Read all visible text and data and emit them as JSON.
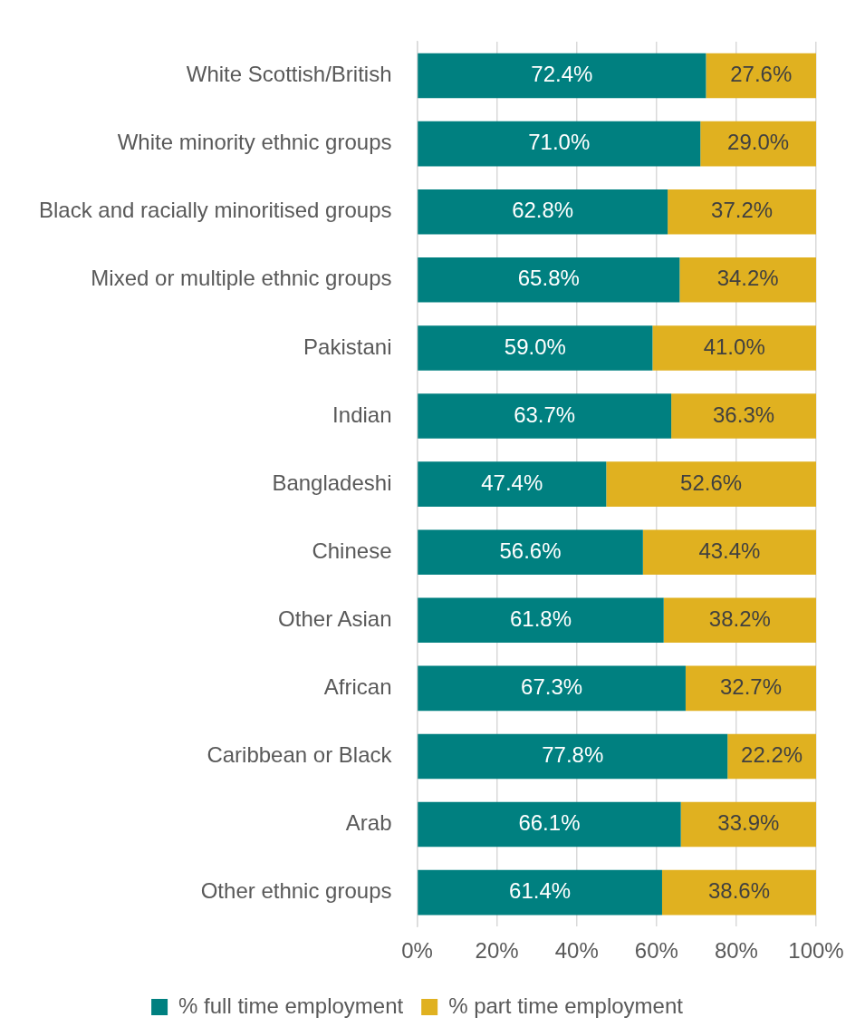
{
  "chart_data": {
    "type": "bar",
    "orientation": "horizontal",
    "stacked": true,
    "categories": [
      "White Scottish/British",
      "White minority ethnic groups",
      "Black and racially minoritised groups",
      "Mixed or multiple ethnic groups",
      "Pakistani",
      "Indian",
      "Bangladeshi",
      "Chinese",
      "Other Asian",
      "African",
      "Caribbean or Black",
      "Arab",
      "Other ethnic groups"
    ],
    "series": [
      {
        "name": "% full time employment",
        "color": "#008080",
        "values": [
          72.4,
          71.0,
          62.8,
          65.8,
          59.0,
          63.7,
          47.4,
          56.6,
          61.8,
          67.3,
          77.8,
          66.1,
          61.4
        ],
        "value_labels": [
          "72.4%",
          "71.0%",
          "62.8%",
          "65.8%",
          "59.0%",
          "63.7%",
          "47.4%",
          "56.6%",
          "61.8%",
          "67.3%",
          "77.8%",
          "66.1%",
          "61.4%"
        ]
      },
      {
        "name": "% part time employment",
        "color": "#e0b120",
        "values": [
          27.6,
          29.0,
          37.2,
          34.2,
          41.0,
          36.3,
          52.6,
          43.4,
          38.2,
          32.7,
          22.2,
          33.9,
          38.6
        ],
        "value_labels": [
          "27.6%",
          "29.0%",
          "37.2%",
          "34.2%",
          "41.0%",
          "36.3%",
          "52.6%",
          "43.4%",
          "38.2%",
          "32.7%",
          "22.2%",
          "33.9%",
          "38.6%"
        ]
      }
    ],
    "xlim": [
      0,
      100
    ],
    "xticks": [
      {
        "value": 0,
        "label": "0%"
      },
      {
        "value": 20,
        "label": "20%"
      },
      {
        "value": 40,
        "label": "40%"
      },
      {
        "value": 60,
        "label": "60%"
      },
      {
        "value": 80,
        "label": "80%"
      },
      {
        "value": 100,
        "label": "100%"
      }
    ],
    "grid": "x",
    "legend": "bottom"
  }
}
